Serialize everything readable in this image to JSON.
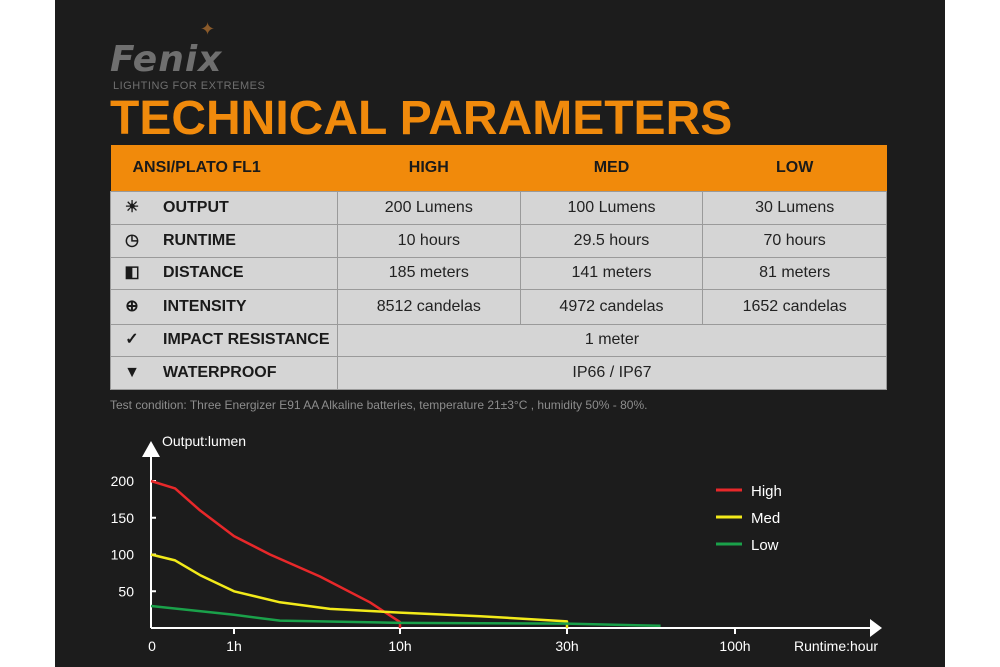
{
  "brand": {
    "logo": "Fenix",
    "tagline": "LIGHTING FOR EXTREMES"
  },
  "title": "TECHNICAL PARAMETERS",
  "table": {
    "headers": [
      "ANSI/PLATO FL1",
      "HIGH",
      "MED",
      "LOW"
    ],
    "rows": [
      {
        "icon": "output-icon",
        "glyph": "☀",
        "label": "OUTPUT",
        "values": [
          "200 Lumens",
          "100 Lumens",
          "30 Lumens"
        ]
      },
      {
        "icon": "clock-icon",
        "glyph": "◷",
        "label": "RUNTIME",
        "values": [
          "10 hours",
          "29.5 hours",
          "70 hours"
        ]
      },
      {
        "icon": "distance-icon",
        "glyph": "◧",
        "label": "DISTANCE",
        "values": [
          "185 meters",
          "141 meters",
          "81 meters"
        ]
      },
      {
        "icon": "target-icon",
        "glyph": "⊕",
        "label": "INTENSITY",
        "values": [
          "8512 candelas",
          "4972 candelas",
          "1652 candelas"
        ]
      },
      {
        "icon": "impact-icon",
        "glyph": "✓",
        "label": "IMPACT RESISTANCE",
        "values": [
          "1 meter"
        ]
      },
      {
        "icon": "waterproof-icon",
        "glyph": "▼",
        "label": "WATERPROOF",
        "values": [
          "IP66 / IP67"
        ]
      }
    ]
  },
  "note": "Test condition: Three Energizer E91 AA Alkaline batteries, temperature 21±3°C , humidity 50% - 80%.",
  "chart_data": {
    "type": "line",
    "ylabel": "Output:lumen",
    "xlabel": "Runtime:hour",
    "x_ticks": [
      0,
      1,
      10,
      30,
      100
    ],
    "x_tick_labels": [
      "0",
      "1h",
      "10h",
      "30h",
      "100h"
    ],
    "y_ticks": [
      50,
      100,
      150,
      200
    ],
    "ylim": [
      0,
      200
    ],
    "legend": "top-right",
    "grid": false,
    "series": [
      {
        "name": "High",
        "color": "#e8282a",
        "points": [
          [
            0,
            200
          ],
          [
            0.29,
            190
          ],
          [
            0.59,
            160
          ],
          [
            1,
            125
          ],
          [
            2.95,
            100
          ],
          [
            5.66,
            70
          ],
          [
            8.37,
            35
          ],
          [
            10,
            8
          ],
          [
            10,
            0
          ]
        ]
      },
      {
        "name": "Med",
        "color": "#f2ea1a",
        "points": [
          [
            0,
            100
          ],
          [
            0.29,
            92
          ],
          [
            0.59,
            72
          ],
          [
            1,
            50
          ],
          [
            3.49,
            35
          ],
          [
            6.2,
            26
          ],
          [
            10,
            21
          ],
          [
            19.6,
            16
          ],
          [
            30,
            9
          ],
          [
            30,
            0
          ]
        ]
      },
      {
        "name": "Low",
        "color": "#1aa14a",
        "points": [
          [
            0,
            30
          ],
          [
            1,
            18
          ],
          [
            3.49,
            10
          ],
          [
            10,
            7
          ],
          [
            30,
            6
          ],
          [
            69,
            3
          ]
        ]
      }
    ]
  }
}
